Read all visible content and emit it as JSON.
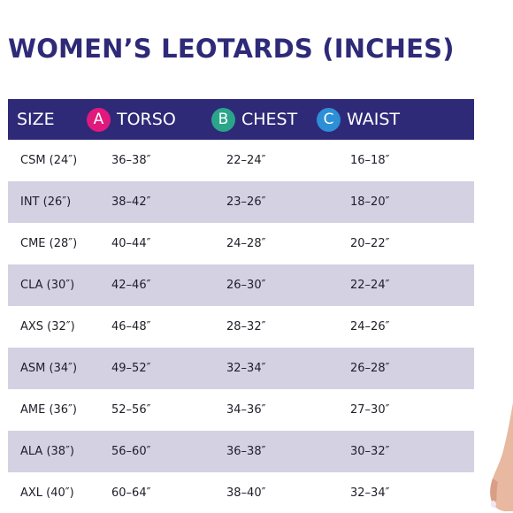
{
  "title": "WOMEN’S LEOTARDS (INCHES)",
  "colors": {
    "header_bg": "#2e2a78",
    "row_alt_bg": "#d4d1e3",
    "badge_a": "#e0197d",
    "badge_b": "#2aa58a",
    "badge_c": "#2d8fd6"
  },
  "header": {
    "size": "SIZE",
    "torso_badge": "A",
    "torso": "TORSO",
    "chest_badge": "B",
    "chest": "CHEST",
    "waist_badge": "C",
    "waist": "WAIST"
  },
  "rows": [
    {
      "size": "CSM (24″)",
      "torso": "36–38″",
      "chest": "22–24″",
      "waist": "16–18″"
    },
    {
      "size": "INT (26″)",
      "torso": "38–42″",
      "chest": "23–26″",
      "waist": "18–20″"
    },
    {
      "size": "CME (28″)",
      "torso": "40–44″",
      "chest": "24–28″",
      "waist": "20–22″"
    },
    {
      "size": "CLA (30″)",
      "torso": "42–46″",
      "chest": "26–30″",
      "waist": "22–24″"
    },
    {
      "size": "AXS (32″)",
      "torso": "46–48″",
      "chest": "28–32″",
      "waist": "24–26″"
    },
    {
      "size": "ASM (34″)",
      "torso": "49–52″",
      "chest": "32–34″",
      "waist": "26–28″"
    },
    {
      "size": "AME (36″)",
      "torso": "52–56″",
      "chest": "34–36″",
      "waist": "27–30″"
    },
    {
      "size": "ALA (38″)",
      "torso": "56–60″",
      "chest": "36–38″",
      "waist": "30–32″"
    },
    {
      "size": "AXL (40″)",
      "torso": "60–64″",
      "chest": "38–40″",
      "waist": "32–34″"
    }
  ]
}
